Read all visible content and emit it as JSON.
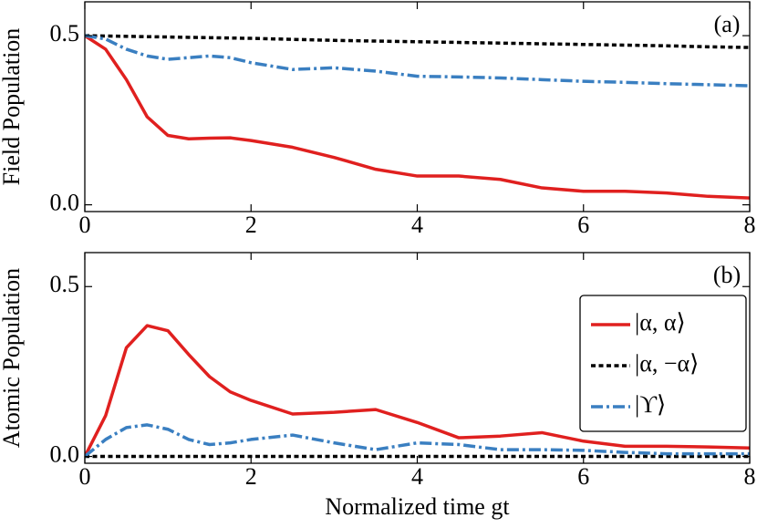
{
  "chart_data": [
    {
      "type": "line",
      "ylabel": "Field Population",
      "annotation": "(a)",
      "x": [
        0,
        0.25,
        0.5,
        0.75,
        1,
        1.25,
        1.5,
        1.75,
        2,
        2.5,
        3,
        3.5,
        4,
        4.5,
        5,
        5.5,
        6,
        6.5,
        7,
        7.5,
        8
      ],
      "xlim": [
        0,
        8
      ],
      "xticks": [
        0,
        2,
        4,
        6,
        8
      ],
      "ylim": [
        -0.02,
        0.6
      ],
      "yticks": [
        {
          "value": 0,
          "label": "0.0"
        },
        0.5
      ],
      "legend": false,
      "series": [
        {
          "color": "#e0201f",
          "dash": "solid",
          "values": [
            0.5,
            0.46,
            0.37,
            0.26,
            0.205,
            0.195,
            0.197,
            0.198,
            0.19,
            0.17,
            0.14,
            0.105,
            0.085,
            0.085,
            0.075,
            0.05,
            0.04,
            0.04,
            0.035,
            0.025,
            0.02
          ]
        },
        {
          "color": "#000000",
          "dash": "dotted",
          "values": [
            0.5,
            0.499,
            0.498,
            0.497,
            0.496,
            0.495,
            0.494,
            0.493,
            0.492,
            0.489,
            0.486,
            0.484,
            0.482,
            0.48,
            0.478,
            0.476,
            0.474,
            0.472,
            0.47,
            0.467,
            0.465
          ]
        },
        {
          "color": "#3a7fc1",
          "dash": "dashdot",
          "values": [
            0.5,
            0.49,
            0.46,
            0.44,
            0.43,
            0.435,
            0.44,
            0.435,
            0.42,
            0.4,
            0.405,
            0.395,
            0.38,
            0.378,
            0.375,
            0.37,
            0.365,
            0.362,
            0.358,
            0.355,
            0.352
          ]
        }
      ]
    },
    {
      "type": "line",
      "ylabel": "Atomic Population",
      "xlabel": "Normalized time gt",
      "annotation": "(b)",
      "x": [
        0,
        0.25,
        0.5,
        0.75,
        1,
        1.25,
        1.5,
        1.75,
        2,
        2.5,
        3,
        3.5,
        4,
        4.5,
        5,
        5.5,
        6,
        6.5,
        7,
        7.5,
        8
      ],
      "xlim": [
        0,
        8
      ],
      "xticks": [
        0,
        2,
        4,
        6,
        8
      ],
      "ylim": [
        -0.02,
        0.6
      ],
      "yticks": [
        {
          "value": 0,
          "label": "0.0"
        },
        0.5
      ],
      "legend": true,
      "series": [
        {
          "name": "|α, α⟩",
          "color": "#e0201f",
          "dash": "solid",
          "values": [
            0,
            0.12,
            0.32,
            0.385,
            0.37,
            0.3,
            0.235,
            0.19,
            0.165,
            0.125,
            0.13,
            0.138,
            0.1,
            0.055,
            0.06,
            0.07,
            0.045,
            0.03,
            0.03,
            0.028,
            0.025
          ]
        },
        {
          "name": "|α, −α⟩",
          "color": "#000000",
          "dash": "dotted",
          "values": [
            0,
            0,
            0,
            0,
            0,
            0,
            0,
            0,
            0,
            0,
            0,
            0,
            0,
            0,
            0,
            0,
            0,
            0,
            0,
            0,
            0
          ]
        },
        {
          "name": "|ϒ⟩",
          "color": "#3a7fc1",
          "dash": "dashdot",
          "values": [
            0,
            0.05,
            0.085,
            0.093,
            0.08,
            0.05,
            0.035,
            0.04,
            0.05,
            0.063,
            0.04,
            0.02,
            0.04,
            0.035,
            0.02,
            0.02,
            0.018,
            0.012,
            0.008,
            0.008,
            0.008
          ]
        }
      ]
    }
  ]
}
